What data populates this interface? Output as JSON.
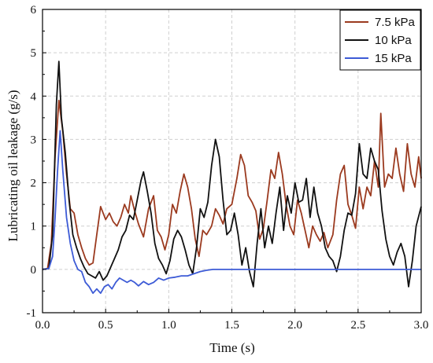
{
  "chart_data": {
    "type": "line",
    "title": "",
    "xlabel": "Time (s)",
    "ylabel": "Lubricating oil leakage (g/s)",
    "xlim": [
      0,
      3
    ],
    "ylim": [
      -1,
      6
    ],
    "x_ticks": [
      "0.0",
      "0.5",
      "1.0",
      "1.5",
      "2.0",
      "2.5",
      "3.0"
    ],
    "y_ticks": [
      "-1",
      "0",
      "1",
      "2",
      "3",
      "4",
      "5",
      "6"
    ],
    "grid": true,
    "legend_position": "top-right",
    "series": [
      {
        "name": "7.5 kPa",
        "color": "#9b3a1f",
        "points": [
          [
            0.0,
            0
          ],
          [
            0.04,
            0.02
          ],
          [
            0.07,
            0.6
          ],
          [
            0.1,
            2.6
          ],
          [
            0.13,
            3.9
          ],
          [
            0.16,
            3.2
          ],
          [
            0.19,
            2.2
          ],
          [
            0.22,
            1.4
          ],
          [
            0.25,
            1.3
          ],
          [
            0.28,
            0.8
          ],
          [
            0.31,
            0.5
          ],
          [
            0.34,
            0.25
          ],
          [
            0.37,
            0.1
          ],
          [
            0.4,
            0.15
          ],
          [
            0.43,
            0.8
          ],
          [
            0.46,
            1.45
          ],
          [
            0.5,
            1.15
          ],
          [
            0.53,
            1.3
          ],
          [
            0.56,
            1.1
          ],
          [
            0.59,
            1.0
          ],
          [
            0.62,
            1.2
          ],
          [
            0.65,
            1.5
          ],
          [
            0.68,
            1.3
          ],
          [
            0.7,
            1.7
          ],
          [
            0.73,
            1.35
          ],
          [
            0.76,
            1.05
          ],
          [
            0.8,
            0.75
          ],
          [
            0.84,
            1.4
          ],
          [
            0.88,
            1.7
          ],
          [
            0.91,
            0.9
          ],
          [
            0.94,
            0.75
          ],
          [
            0.97,
            0.45
          ],
          [
            1.0,
            0.8
          ],
          [
            1.03,
            1.5
          ],
          [
            1.06,
            1.3
          ],
          [
            1.09,
            1.8
          ],
          [
            1.12,
            2.2
          ],
          [
            1.15,
            1.9
          ],
          [
            1.18,
            1.4
          ],
          [
            1.21,
            0.7
          ],
          [
            1.24,
            0.3
          ],
          [
            1.27,
            0.9
          ],
          [
            1.3,
            0.8
          ],
          [
            1.34,
            1.0
          ],
          [
            1.37,
            1.4
          ],
          [
            1.4,
            1.25
          ],
          [
            1.43,
            1.05
          ],
          [
            1.46,
            1.4
          ],
          [
            1.5,
            1.5
          ],
          [
            1.54,
            2.1
          ],
          [
            1.57,
            2.65
          ],
          [
            1.6,
            2.4
          ],
          [
            1.63,
            1.7
          ],
          [
            1.66,
            1.55
          ],
          [
            1.69,
            1.35
          ],
          [
            1.72,
            0.7
          ],
          [
            1.75,
            0.95
          ],
          [
            1.78,
            1.6
          ],
          [
            1.81,
            2.3
          ],
          [
            1.84,
            2.1
          ],
          [
            1.87,
            2.7
          ],
          [
            1.9,
            2.2
          ],
          [
            1.93,
            1.5
          ],
          [
            1.96,
            1.0
          ],
          [
            1.99,
            0.8
          ],
          [
            2.02,
            1.6
          ],
          [
            2.05,
            1.3
          ],
          [
            2.08,
            0.9
          ],
          [
            2.11,
            0.5
          ],
          [
            2.14,
            1.0
          ],
          [
            2.17,
            0.8
          ],
          [
            2.2,
            0.65
          ],
          [
            2.23,
            0.85
          ],
          [
            2.26,
            0.5
          ],
          [
            2.3,
            0.8
          ],
          [
            2.33,
            1.6
          ],
          [
            2.36,
            2.2
          ],
          [
            2.39,
            2.4
          ],
          [
            2.42,
            1.5
          ],
          [
            2.45,
            1.25
          ],
          [
            2.48,
            0.95
          ],
          [
            2.51,
            1.9
          ],
          [
            2.54,
            1.4
          ],
          [
            2.57,
            1.9
          ],
          [
            2.6,
            1.7
          ],
          [
            2.63,
            2.5
          ],
          [
            2.66,
            1.9
          ],
          [
            2.68,
            3.6
          ],
          [
            2.71,
            1.9
          ],
          [
            2.74,
            2.2
          ],
          [
            2.77,
            2.1
          ],
          [
            2.8,
            2.8
          ],
          [
            2.83,
            2.2
          ],
          [
            2.86,
            1.8
          ],
          [
            2.89,
            2.9
          ],
          [
            2.92,
            2.2
          ],
          [
            2.95,
            1.9
          ],
          [
            2.98,
            2.6
          ],
          [
            3.0,
            2.1
          ]
        ]
      },
      {
        "name": "10 kPa",
        "color": "#111111",
        "points": [
          [
            0.0,
            0
          ],
          [
            0.05,
            0.02
          ],
          [
            0.08,
            0.8
          ],
          [
            0.11,
            3.8
          ],
          [
            0.13,
            4.8
          ],
          [
            0.15,
            3.5
          ],
          [
            0.18,
            2.7
          ],
          [
            0.21,
            1.6
          ],
          [
            0.24,
            0.8
          ],
          [
            0.27,
            0.5
          ],
          [
            0.3,
            0.25
          ],
          [
            0.33,
            0.05
          ],
          [
            0.36,
            -0.1
          ],
          [
            0.39,
            -0.15
          ],
          [
            0.42,
            -0.2
          ],
          [
            0.45,
            -0.05
          ],
          [
            0.48,
            -0.25
          ],
          [
            0.51,
            -0.15
          ],
          [
            0.54,
            0.05
          ],
          [
            0.57,
            0.25
          ],
          [
            0.6,
            0.45
          ],
          [
            0.63,
            0.75
          ],
          [
            0.66,
            0.9
          ],
          [
            0.69,
            1.25
          ],
          [
            0.72,
            1.15
          ],
          [
            0.75,
            1.6
          ],
          [
            0.78,
            2.05
          ],
          [
            0.8,
            2.25
          ],
          [
            0.83,
            1.8
          ],
          [
            0.86,
            1.3
          ],
          [
            0.89,
            0.6
          ],
          [
            0.92,
            0.25
          ],
          [
            0.95,
            0.1
          ],
          [
            0.98,
            -0.1
          ],
          [
            1.01,
            0.2
          ],
          [
            1.04,
            0.7
          ],
          [
            1.07,
            0.9
          ],
          [
            1.1,
            0.75
          ],
          [
            1.13,
            0.45
          ],
          [
            1.16,
            0.1
          ],
          [
            1.19,
            -0.1
          ],
          [
            1.22,
            0.5
          ],
          [
            1.25,
            1.4
          ],
          [
            1.28,
            1.2
          ],
          [
            1.31,
            1.55
          ],
          [
            1.34,
            2.4
          ],
          [
            1.37,
            3.0
          ],
          [
            1.4,
            2.6
          ],
          [
            1.43,
            1.6
          ],
          [
            1.46,
            0.8
          ],
          [
            1.49,
            0.9
          ],
          [
            1.52,
            1.3
          ],
          [
            1.55,
            0.8
          ],
          [
            1.58,
            0.1
          ],
          [
            1.61,
            0.5
          ],
          [
            1.64,
            -0.05
          ],
          [
            1.67,
            -0.4
          ],
          [
            1.7,
            0.6
          ],
          [
            1.73,
            1.4
          ],
          [
            1.76,
            0.5
          ],
          [
            1.79,
            1.0
          ],
          [
            1.82,
            0.6
          ],
          [
            1.85,
            1.3
          ],
          [
            1.88,
            1.9
          ],
          [
            1.91,
            0.9
          ],
          [
            1.94,
            1.7
          ],
          [
            1.97,
            1.3
          ],
          [
            2.0,
            2.0
          ],
          [
            2.03,
            1.55
          ],
          [
            2.06,
            1.6
          ],
          [
            2.09,
            2.1
          ],
          [
            2.12,
            1.2
          ],
          [
            2.15,
            1.9
          ],
          [
            2.18,
            1.3
          ],
          [
            2.21,
            1.0
          ],
          [
            2.24,
            0.5
          ],
          [
            2.27,
            0.3
          ],
          [
            2.3,
            0.2
          ],
          [
            2.33,
            -0.05
          ],
          [
            2.36,
            0.3
          ],
          [
            2.39,
            0.9
          ],
          [
            2.42,
            1.3
          ],
          [
            2.45,
            1.25
          ],
          [
            2.48,
            1.75
          ],
          [
            2.51,
            2.9
          ],
          [
            2.54,
            2.2
          ],
          [
            2.57,
            2.1
          ],
          [
            2.6,
            2.8
          ],
          [
            2.63,
            2.5
          ],
          [
            2.66,
            2.3
          ],
          [
            2.69,
            1.35
          ],
          [
            2.72,
            0.7
          ],
          [
            2.75,
            0.3
          ],
          [
            2.78,
            0.1
          ],
          [
            2.81,
            0.4
          ],
          [
            2.84,
            0.6
          ],
          [
            2.87,
            0.3
          ],
          [
            2.9,
            -0.4
          ],
          [
            2.93,
            0.2
          ],
          [
            2.96,
            1.0
          ],
          [
            3.0,
            1.45
          ]
        ]
      },
      {
        "name": "15 kPa",
        "color": "#3d5bd6",
        "points": [
          [
            0.0,
            0
          ],
          [
            0.05,
            0.02
          ],
          [
            0.08,
            0.3
          ],
          [
            0.1,
            1.2
          ],
          [
            0.12,
            2.3
          ],
          [
            0.14,
            3.2
          ],
          [
            0.16,
            2.3
          ],
          [
            0.19,
            1.2
          ],
          [
            0.22,
            0.6
          ],
          [
            0.25,
            0.2
          ],
          [
            0.28,
            0.0
          ],
          [
            0.31,
            -0.05
          ],
          [
            0.34,
            -0.3
          ],
          [
            0.37,
            -0.4
          ],
          [
            0.4,
            -0.55
          ],
          [
            0.43,
            -0.45
          ],
          [
            0.46,
            -0.55
          ],
          [
            0.49,
            -0.4
          ],
          [
            0.52,
            -0.35
          ],
          [
            0.55,
            -0.45
          ],
          [
            0.58,
            -0.3
          ],
          [
            0.61,
            -0.2
          ],
          [
            0.64,
            -0.25
          ],
          [
            0.67,
            -0.3
          ],
          [
            0.7,
            -0.25
          ],
          [
            0.73,
            -0.3
          ],
          [
            0.76,
            -0.38
          ],
          [
            0.8,
            -0.28
          ],
          [
            0.84,
            -0.35
          ],
          [
            0.88,
            -0.3
          ],
          [
            0.92,
            -0.2
          ],
          [
            0.96,
            -0.25
          ],
          [
            1.0,
            -0.2
          ],
          [
            1.05,
            -0.18
          ],
          [
            1.1,
            -0.15
          ],
          [
            1.15,
            -0.15
          ],
          [
            1.2,
            -0.1
          ],
          [
            1.25,
            -0.05
          ],
          [
            1.3,
            -0.02
          ],
          [
            1.35,
            0.0
          ],
          [
            1.4,
            0.0
          ],
          [
            1.6,
            0.0
          ],
          [
            1.8,
            0.0
          ],
          [
            2.0,
            0.0
          ],
          [
            2.2,
            0.0
          ],
          [
            2.4,
            0.0
          ],
          [
            2.6,
            0.0
          ],
          [
            2.8,
            0.0
          ],
          [
            3.0,
            0.0
          ]
        ]
      }
    ]
  }
}
